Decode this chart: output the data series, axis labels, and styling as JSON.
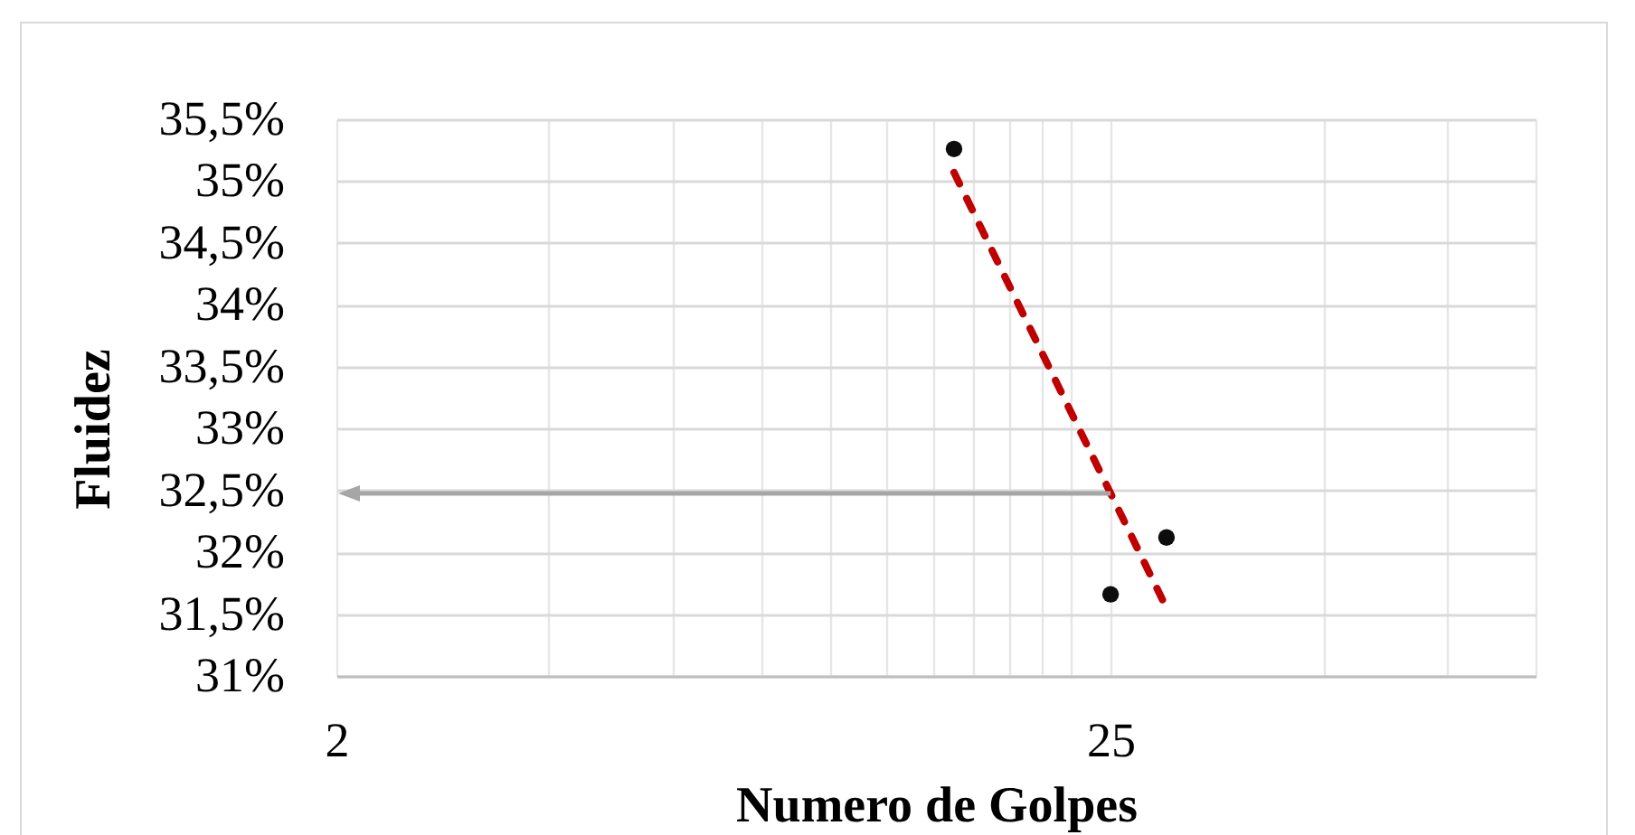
{
  "chart_data": {
    "type": "scatter",
    "xlabel": "Numero de Golpes",
    "ylabel": "Fluidez",
    "log": "x",
    "grid": true,
    "xlim": [
      2,
      100
    ],
    "ylim": [
      31,
      35.5
    ],
    "xticks": [
      2,
      {
        "value": 4,
        "label": null
      },
      {
        "value": 6,
        "label": null
      },
      {
        "value": 8,
        "label": null
      },
      {
        "value": 10,
        "label": null
      },
      {
        "value": 12,
        "label": null
      },
      {
        "value": 14,
        "label": null
      },
      {
        "value": 16,
        "label": null
      },
      {
        "value": 18,
        "label": null
      },
      {
        "value": 20,
        "label": null
      },
      {
        "value": 22,
        "label": null
      },
      25,
      {
        "value": 50,
        "label": null
      },
      {
        "value": 75,
        "label": null
      },
      {
        "value": 100,
        "label": null
      }
    ],
    "yticks": [
      {
        "value": 31,
        "label": "31%"
      },
      {
        "value": 31.5,
        "label": "31,5%"
      },
      {
        "value": 32,
        "label": "32%"
      },
      {
        "value": 32.5,
        "label": "32,5%"
      },
      {
        "value": 33,
        "label": "33%"
      },
      {
        "value": 33.5,
        "label": "33,5%"
      },
      {
        "value": 34,
        "label": "34%"
      },
      {
        "value": 34.5,
        "label": "34,5%"
      },
      {
        "value": 35,
        "label": "35%"
      },
      {
        "value": 35.5,
        "label": "35,5%"
      }
    ],
    "series": [
      {
        "color": "#0d0d0d",
        "marker": "circle",
        "x": [
          15,
          25,
          30
        ],
        "values": [
          35.26,
          31.66,
          32.12
        ]
      },
      {
        "type": "line",
        "color": "#c00000",
        "line_style": "dashed",
        "x": [
          15,
          30
        ],
        "values": [
          35.07,
          31.55
        ]
      }
    ]
  }
}
